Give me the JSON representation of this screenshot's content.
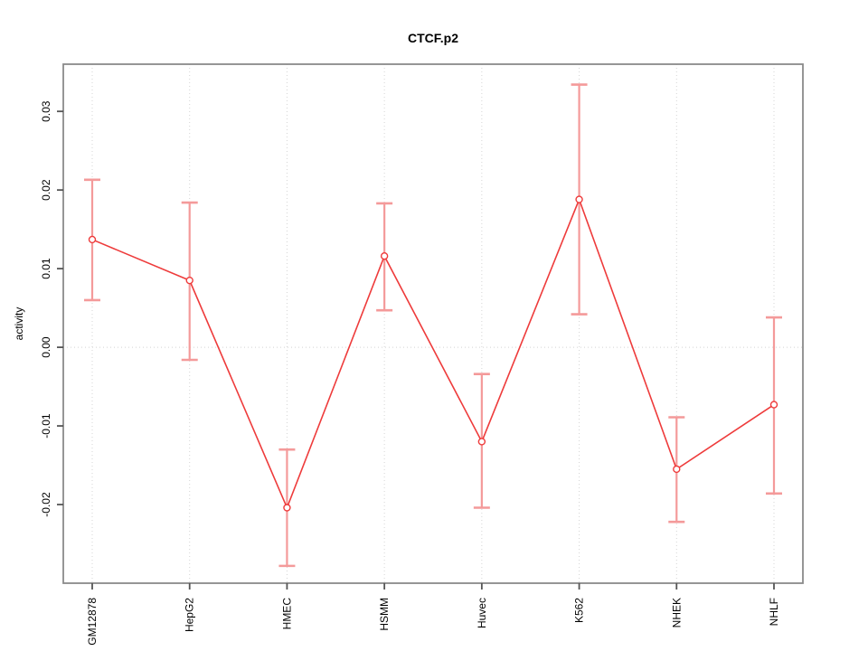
{
  "chart_data": {
    "type": "line",
    "title": "CTCF.p2",
    "xlabel": "",
    "ylabel": "activity",
    "categories": [
      "GM12878",
      "HepG2",
      "HMEC",
      "HSMM",
      "Huvec",
      "K562",
      "NHEK",
      "NHLF"
    ],
    "series": [
      {
        "name": "activity",
        "values": [
          0.0137,
          0.0085,
          -0.0204,
          0.0116,
          -0.012,
          0.0188,
          -0.0155,
          -0.0073
        ],
        "upper": [
          0.0213,
          0.0184,
          -0.013,
          0.0183,
          -0.0034,
          0.0334,
          -0.0089,
          0.0038
        ],
        "lower": [
          0.006,
          -0.0016,
          -0.0278,
          0.0047,
          -0.0204,
          0.0042,
          -0.0222,
          -0.0186
        ]
      }
    ],
    "ylim": [
      -0.03,
      0.036
    ],
    "ytick_values": [
      -0.02,
      -0.01,
      0.0,
      0.01,
      0.02,
      0.03
    ],
    "ytick_labels": [
      "-0.02",
      "-0.01",
      "0.00",
      "0.01",
      "0.02",
      "0.03"
    ],
    "legend": "none",
    "grid": "dotted vertical gridline at each category; dotted horizontal line at y=0",
    "marker": "open-circle",
    "error_bars": true,
    "colors": {
      "line": "#ee3b3b",
      "marker": "#ee3b3b",
      "error_bar": "#f49a9a",
      "grid": "#d4d4d4",
      "box": "#8a8a8a",
      "tick": "#555555",
      "text": "#000000",
      "background": "#ffffff"
    }
  }
}
